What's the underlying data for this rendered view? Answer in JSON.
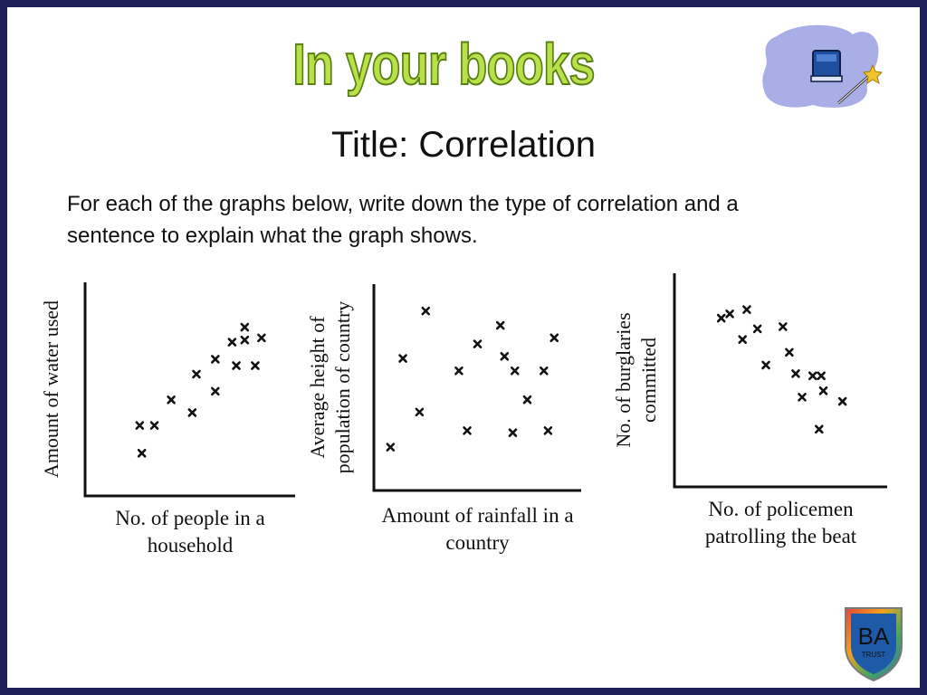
{
  "slide": {
    "heading": "In your books",
    "title": "Title: Correlation",
    "instructions_line1": "For each of the graphs below, write down the type of correlation and a",
    "instructions_line2": "sentence to explain what the graph shows.",
    "logo_text": "BA",
    "logo_subtext": "TRUST"
  },
  "icons": {
    "book_icon": "book-with-wand-icon",
    "logo": "ba-trust-shield-logo"
  },
  "colors": {
    "frame": "#1f1f5c",
    "heading_fill": "#b7e04a",
    "heading_outline": "#5a7d12",
    "icon_blob": "#a9aee6",
    "book_blue": "#1e4fa0"
  },
  "chart_data": [
    {
      "type": "scatter",
      "title": "",
      "xlabel_lines": [
        "No. of people in a",
        "household"
      ],
      "ylabel_lines": [
        "Amount of water used"
      ],
      "xlim": [
        0,
        10
      ],
      "ylim": [
        0,
        10
      ],
      "grid": false,
      "points": [
        [
          2.6,
          3.3
        ],
        [
          3.3,
          3.3
        ],
        [
          2.7,
          2.0
        ],
        [
          4.1,
          4.5
        ],
        [
          5.1,
          3.9
        ],
        [
          5.3,
          5.7
        ],
        [
          6.2,
          4.9
        ],
        [
          6.2,
          6.4
        ],
        [
          7.0,
          7.2
        ],
        [
          7.2,
          6.1
        ],
        [
          7.6,
          7.3
        ],
        [
          7.6,
          7.9
        ],
        [
          8.1,
          6.1
        ],
        [
          8.4,
          7.4
        ]
      ]
    },
    {
      "type": "scatter",
      "title": "",
      "xlabel_lines": [
        "Amount of rainfall in a",
        "country"
      ],
      "ylabel_lines": [
        "Average height of",
        "population of country"
      ],
      "xlim": [
        0,
        10
      ],
      "ylim": [
        0,
        10
      ],
      "grid": false,
      "points": [
        [
          0.8,
          2.1
        ],
        [
          1.4,
          6.4
        ],
        [
          2.5,
          8.7
        ],
        [
          2.2,
          3.8
        ],
        [
          4.1,
          5.8
        ],
        [
          4.5,
          2.9
        ],
        [
          5.0,
          7.1
        ],
        [
          6.1,
          8.0
        ],
        [
          6.3,
          6.5
        ],
        [
          6.8,
          5.8
        ],
        [
          6.7,
          2.8
        ],
        [
          7.4,
          4.4
        ],
        [
          8.2,
          5.8
        ],
        [
          8.4,
          2.9
        ],
        [
          8.7,
          7.4
        ]
      ]
    },
    {
      "type": "scatter",
      "title": "",
      "xlabel_lines": [
        "No. of  policemen",
        "patrolling the beat"
      ],
      "ylabel_lines": [
        "No. of burglaries",
        "committed"
      ],
      "xlim": [
        0,
        10
      ],
      "ylim": [
        0,
        10
      ],
      "grid": false,
      "points": [
        [
          2.2,
          7.9
        ],
        [
          2.6,
          8.1
        ],
        [
          3.4,
          8.3
        ],
        [
          3.2,
          6.9
        ],
        [
          3.9,
          7.4
        ],
        [
          4.3,
          5.7
        ],
        [
          5.1,
          7.5
        ],
        [
          5.4,
          6.3
        ],
        [
          5.7,
          5.3
        ],
        [
          6.0,
          4.2
        ],
        [
          6.5,
          5.2
        ],
        [
          6.8,
          2.7
        ],
        [
          6.9,
          5.2
        ],
        [
          7.0,
          4.5
        ],
        [
          7.9,
          4.0
        ]
      ]
    }
  ]
}
